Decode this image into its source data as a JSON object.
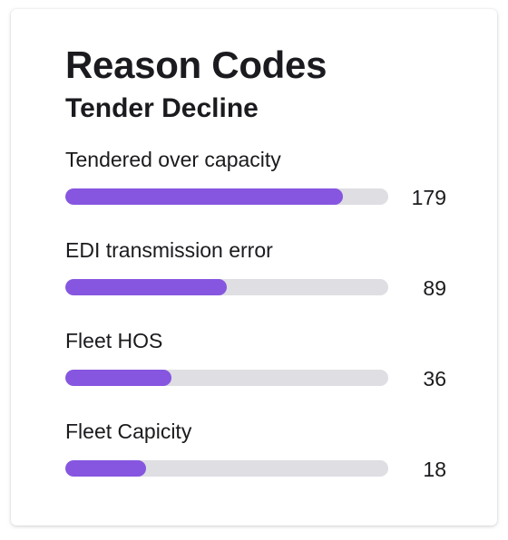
{
  "card": {
    "title": "Reason Codes",
    "subtitle": "Tender Decline"
  },
  "colors": {
    "bar_fill": "#8656e0",
    "bar_track": "#dedee3"
  },
  "chart_data": {
    "type": "bar",
    "orientation": "horizontal",
    "title": "Reason Codes",
    "subtitle": "Tender Decline",
    "categories": [
      "Tendered over capacity",
      "EDI transmission error",
      "Fleet HOS",
      "Fleet Capicity"
    ],
    "values": [
      179,
      89,
      36,
      18
    ],
    "value_labels": [
      "179",
      "89",
      "36",
      "18"
    ],
    "fill_fractions": [
      0.86,
      0.5,
      0.33,
      0.25
    ],
    "grid": false,
    "legend": "none"
  }
}
